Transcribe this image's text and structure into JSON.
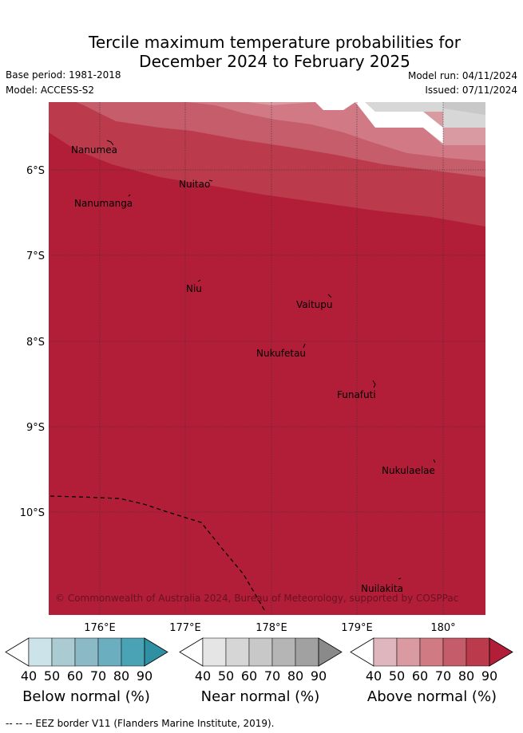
{
  "title": {
    "line1": "Tercile maximum temperature probabilities for",
    "line2": "December 2024 to February 2025"
  },
  "meta": {
    "base_period": "Base period: 1981-2018",
    "model": "Model: ACCESS-S2",
    "model_run": "Model run: 04/11/2024",
    "issued": "Issued: 07/11/2024"
  },
  "map": {
    "lon_labels": [
      "176°E",
      "177°E",
      "178°E",
      "179°E",
      "180°"
    ],
    "lat_labels": [
      "6°S",
      "7°S",
      "8°S",
      "9°S",
      "10°S"
    ],
    "places": [
      "Nanumea",
      "Nuitao",
      "Nanumanga",
      "Niu",
      "Vaitupu",
      "Nukufetau",
      "Funafuti",
      "Nukulaelae",
      "Nuilakita"
    ],
    "copyright": "© Commonwealth of Australia 2024, Bureau of Meteorology, supported by COSPPac",
    "colors": {
      "above_90": "#b21e38",
      "above_80": "#bb3a4c",
      "above_70": "#c65d6b",
      "above_60": "#d17a85",
      "above_50": "#da9aa1",
      "near_50": "#d7d7d7",
      "near_60": "#c8c8c8"
    }
  },
  "colorbars": {
    "ticks": [
      "40",
      "50",
      "60",
      "70",
      "80",
      "90"
    ],
    "below": {
      "title": "Below normal (%)",
      "colors": [
        "#ffffff",
        "#cde3ea",
        "#aacbd2",
        "#8bbac6",
        "#6aaebf",
        "#4aa3b5",
        "#2f8fa3"
      ]
    },
    "near": {
      "title": "Near normal (%)",
      "colors": [
        "#ffffff",
        "#e5e5e5",
        "#d6d6d6",
        "#c8c8c8",
        "#b5b5b5",
        "#a1a1a1",
        "#8a8a8a"
      ]
    },
    "above": {
      "title": "Above normal (%)",
      "colors": [
        "#ffffff",
        "#e0b6be",
        "#d99aa2",
        "#d07a84",
        "#c55c6a",
        "#bb3a4c",
        "#b21e38"
      ]
    }
  },
  "footer": "--  --  -- EEZ border V11 (Flanders Marine Institute, 2019)."
}
